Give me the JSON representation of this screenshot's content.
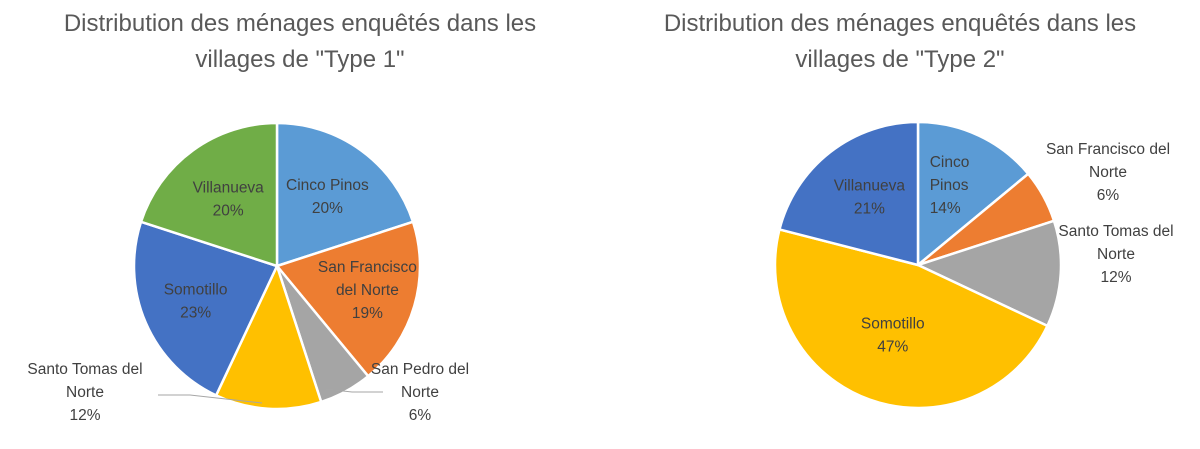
{
  "colors": {
    "blue_light": "#5b9bd5",
    "orange": "#ed7d31",
    "gray": "#a5a5a5",
    "gold": "#ffc000",
    "blue_dark": "#4472c4",
    "green": "#70ad47",
    "title_text": "#595959",
    "label_dark": "#404040"
  },
  "chart_data": [
    {
      "type": "pie",
      "title_lines": [
        "Distribution des ménages enquêtés dans les",
        "villages de \"Type 1\""
      ],
      "slices": [
        {
          "name": "Cinco Pinos",
          "label_lines": [
            "Cinco Pinos",
            "20%"
          ],
          "value": 20,
          "percent": "20%",
          "color": "#5b9bd5"
        },
        {
          "name": "San Francisco del Norte",
          "label_lines": [
            "San Francisco",
            "del Norte",
            "19%"
          ],
          "value": 19,
          "percent": "19%",
          "color": "#ed7d31"
        },
        {
          "name": "San Pedro del Norte",
          "label_lines": [
            "San Pedro del",
            "Norte",
            "6%"
          ],
          "value": 6,
          "percent": "6%",
          "color": "#a5a5a5"
        },
        {
          "name": "Santo Tomas del Norte",
          "label_lines": [
            "Santo Tomas del",
            "Norte",
            "12%"
          ],
          "value": 12,
          "percent": "12%",
          "color": "#ffc000"
        },
        {
          "name": "Somotillo",
          "label_lines": [
            "Somotillo",
            "23%"
          ],
          "value": 23,
          "percent": "23%",
          "color": "#4472c4"
        },
        {
          "name": "Villanueva",
          "label_lines": [
            "Villanueva",
            "20%"
          ],
          "value": 20,
          "percent": "20%",
          "color": "#70ad47"
        }
      ]
    },
    {
      "type": "pie",
      "title_lines": [
        "Distribution des ménages enquêtés dans les",
        "villages de \"Type 2\""
      ],
      "slices": [
        {
          "name": "Cinco Pinos",
          "label_lines": [
            "Cinco",
            "Pinos",
            "14%"
          ],
          "value": 14,
          "percent": "14%",
          "color": "#5b9bd5"
        },
        {
          "name": "San Francisco del Norte",
          "label_lines": [
            "San Francisco del",
            "Norte",
            "6%"
          ],
          "value": 6,
          "percent": "6%",
          "color": "#ed7d31"
        },
        {
          "name": "Santo Tomas del Norte",
          "label_lines": [
            "Santo Tomas del",
            "Norte",
            "12%"
          ],
          "value": 12,
          "percent": "12%",
          "color": "#a5a5a5"
        },
        {
          "name": "Somotillo",
          "label_lines": [
            "Somotillo",
            "47%"
          ],
          "value": 47,
          "percent": "47%",
          "color": "#ffc000"
        },
        {
          "name": "Villanueva",
          "label_lines": [
            "Villanueva",
            "21%"
          ],
          "value": 21,
          "percent": "21%",
          "color": "#4472c4"
        }
      ]
    }
  ]
}
